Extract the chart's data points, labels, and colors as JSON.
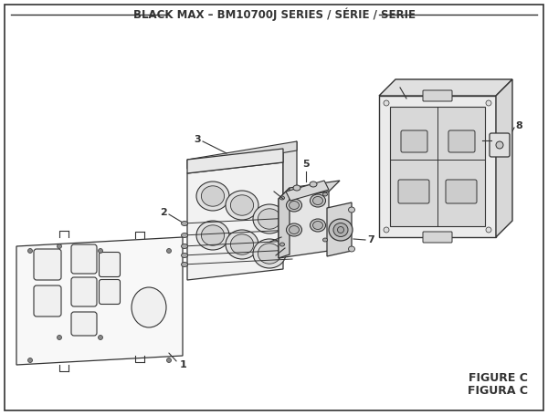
{
  "title": "BLACK MAX – BM10700J SERIES / SÉRIE / SERIE",
  "figure_label": "FIGURE C",
  "figure_label2": "FIGURA C",
  "bg_color": "#ffffff",
  "line_color": "#333333",
  "title_fontsize": 8.5,
  "figsize": [
    6.0,
    4.55
  ],
  "dpi": 100
}
